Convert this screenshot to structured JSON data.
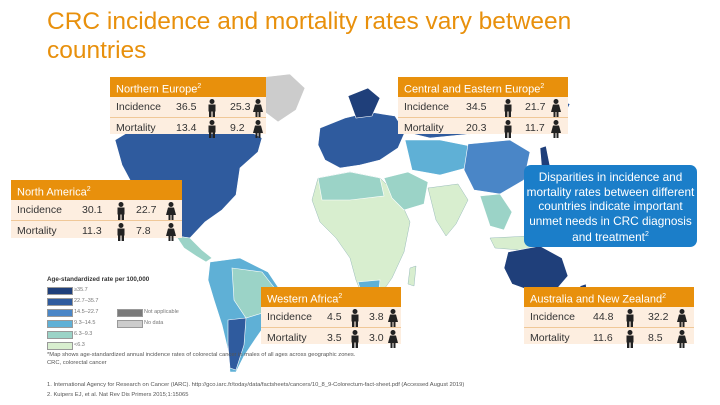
{
  "title": "CRC incidence and mortality rates vary between countries",
  "colors": {
    "accent": "#e8900c",
    "card_bg": "#fdeee0",
    "callout_bg": "#1b7ec9"
  },
  "regions": {
    "northern_europe": {
      "name": "Northern Europe",
      "sup": "2",
      "incidence_label": "Incidence",
      "mortality_label": "Mortality",
      "incidence_male": "36.5",
      "incidence_female": "25.3",
      "mortality_male": "13.4",
      "mortality_female": "9.2"
    },
    "central_eastern_europe": {
      "name": "Central and Eastern Europe",
      "sup": "2",
      "incidence_label": "Incidence",
      "mortality_label": "Mortality",
      "incidence_male": "34.5",
      "incidence_female": "21.7",
      "mortality_male": "20.3",
      "mortality_female": "11.7"
    },
    "north_america": {
      "name": "North America",
      "sup": "2",
      "incidence_label": "Incidence",
      "mortality_label": "Mortality",
      "incidence_male": "30.1",
      "incidence_female": "22.7",
      "mortality_male": "11.3",
      "mortality_female": "7.8"
    },
    "western_africa": {
      "name": "Western Africa",
      "sup": "2",
      "incidence_label": "Incidence",
      "mortality_label": "Mortality",
      "incidence_male": "4.5",
      "incidence_female": "3.8",
      "mortality_male": "3.5",
      "mortality_female": "3.0"
    },
    "australia_nz": {
      "name": "Australia and New Zealand",
      "sup": "2",
      "incidence_label": "Incidence",
      "mortality_label": "Mortality",
      "incidence_male": "44.8",
      "incidence_female": "32.2",
      "mortality_male": "11.6",
      "mortality_female": "8.5"
    }
  },
  "callout": {
    "text": "Disparities in incidence and mortality rates between different countries indicate important unmet needs in CRC diagnosis and treatment",
    "sup": "2"
  },
  "legend": {
    "title": "Age-standardized rate per 100,000",
    "items": [
      {
        "label": "≥35.7",
        "color": "#1f3f7a"
      },
      {
        "label": "22.7–35.7",
        "color": "#2f5b9e"
      },
      {
        "label": "14.5–22.7",
        "color": "#4a86c7"
      },
      {
        "label": "9.3–14.5",
        "color": "#5fb0d6"
      },
      {
        "label": "6.3–9.3",
        "color": "#9bd3c7"
      },
      {
        "label": "<6.3",
        "color": "#d8eecf"
      }
    ],
    "not_applicable": "Not applicable",
    "no_data": "No data",
    "not_applicable_color": "#7a7a7a",
    "no_data_color": "#cccccc"
  },
  "footnotes": {
    "star": "*Map shows age-standardized annual incidence rates of colorectal cancer in males of all ages across geographic zones.",
    "abbrev": "CRC, colorectal cancer",
    "ref1": "1. International Agency for Research on Cancer (IARC). http://gco.iarc.fr/today/data/factsheets/cancers/10_8_9-Colorectum-fact-sheet.pdf (Accessed August 2019)",
    "ref2": "2. Kuipers EJ, et al. Nat Rev Dis Primers 2015;1:15065"
  }
}
